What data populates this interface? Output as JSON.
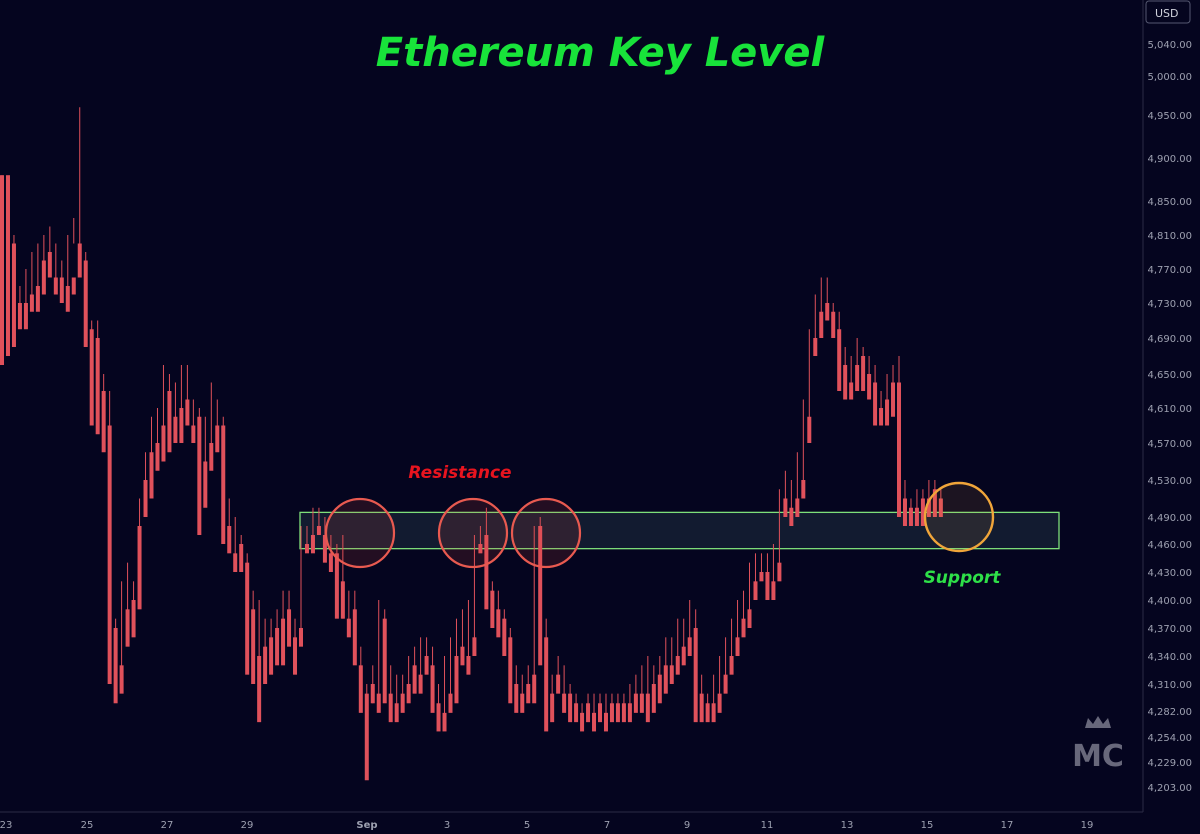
{
  "chart_data": {
    "type": "candlestick",
    "title": "Ethereum Key Level",
    "currency": "USD",
    "colors": {
      "background": "#05051f",
      "up": "#6fa86a",
      "down": "#e0515b",
      "title": "#18e33a",
      "resistance_text": "#e8141f",
      "support_text": "#2ee048",
      "zone_border": "#7ee07a",
      "resistance_circle": "#e85a50",
      "support_circle": "#f0a53a",
      "axis_text": "#9da0b0"
    },
    "y_axis": {
      "ticks": [
        4203,
        4229,
        4254,
        4282,
        4310,
        4340,
        4370,
        4400,
        4430,
        4460,
        4490,
        4530,
        4570,
        4610,
        4650,
        4690,
        4730,
        4770,
        4810,
        4850,
        4900,
        4950,
        5000,
        5040
      ],
      "tick_labels": [
        "4,203.00",
        "4,229.00",
        "4,254.00",
        "4,282.00",
        "4,310.00",
        "4,340.00",
        "4,370.00",
        "4,400.00",
        "4,430.00",
        "4,460.00",
        "4,490.00",
        "4,530.00",
        "4,570.00",
        "4,610.00",
        "4,650.00",
        "4,690.00",
        "4,730.00",
        "4,770.00",
        "4,810.00",
        "4,850.00",
        "4,900.00",
        "4,950.00",
        "5,000.00",
        "5,040.00"
      ]
    },
    "x_axis": {
      "tick_labels": [
        "23",
        "25",
        "27",
        "29",
        "Sep",
        "3",
        "5",
        "7",
        "9",
        "11",
        "13",
        "15",
        "17",
        "19"
      ]
    },
    "key_zone": {
      "low": 4455,
      "high": 4495
    },
    "annotations": {
      "resistance_label": "Resistance",
      "support_label": "Support"
    },
    "candles": [
      [
        4880,
        4880,
        4700,
        4660
      ],
      [
        4880,
        4800,
        4760,
        4670
      ],
      [
        4800,
        4810,
        4710,
        4680
      ],
      [
        4730,
        4750,
        4710,
        4700
      ],
      [
        4730,
        4770,
        4720,
        4700
      ],
      [
        4740,
        4790,
        4730,
        4720
      ],
      [
        4750,
        4800,
        4740,
        4720
      ],
      [
        4780,
        4810,
        4760,
        4740
      ],
      [
        4790,
        4820,
        4760,
        4760
      ],
      [
        4760,
        4800,
        4750,
        4740
      ],
      [
        4760,
        4780,
        4740,
        4730
      ],
      [
        4750,
        4810,
        4740,
        4720
      ],
      [
        4760,
        4830,
        4800,
        4740
      ],
      [
        4800,
        4960,
        4770,
        4760
      ],
      [
        4780,
        4790,
        4700,
        4680
      ],
      [
        4700,
        4710,
        4600,
        4590
      ],
      [
        4690,
        4710,
        4600,
        4580
      ],
      [
        4630,
        4650,
        4580,
        4560
      ],
      [
        4590,
        4630,
        4330,
        4310
      ],
      [
        4370,
        4380,
        4320,
        4290
      ],
      [
        4330,
        4420,
        4320,
        4300
      ],
      [
        4390,
        4440,
        4370,
        4350
      ],
      [
        4400,
        4420,
        4380,
        4360
      ],
      [
        4480,
        4510,
        4400,
        4390
      ],
      [
        4530,
        4560,
        4500,
        4490
      ],
      [
        4560,
        4600,
        4530,
        4510
      ],
      [
        4570,
        4610,
        4550,
        4540
      ],
      [
        4590,
        4660,
        4560,
        4550
      ],
      [
        4630,
        4650,
        4570,
        4560
      ],
      [
        4600,
        4640,
        4580,
        4570
      ],
      [
        4610,
        4660,
        4580,
        4570
      ],
      [
        4620,
        4660,
        4600,
        4590
      ],
      [
        4590,
        4620,
        4580,
        4570
      ],
      [
        4600,
        4610,
        4480,
        4470
      ],
      [
        4550,
        4600,
        4520,
        4500
      ],
      [
        4570,
        4640,
        4560,
        4540
      ],
      [
        4590,
        4620,
        4580,
        4560
      ],
      [
        4590,
        4600,
        4470,
        4460
      ],
      [
        4480,
        4510,
        4460,
        4450
      ],
      [
        4450,
        4490,
        4440,
        4430
      ],
      [
        4460,
        4470,
        4440,
        4430
      ],
      [
        4440,
        4450,
        4340,
        4320
      ],
      [
        4390,
        4410,
        4340,
        4310
      ],
      [
        4340,
        4400,
        4320,
        4270
      ],
      [
        4350,
        4380,
        4330,
        4310
      ],
      [
        4360,
        4380,
        4340,
        4320
      ],
      [
        4370,
        4390,
        4350,
        4330
      ],
      [
        4380,
        4410,
        4360,
        4330
      ],
      [
        4390,
        4410,
        4360,
        4350
      ],
      [
        4360,
        4380,
        4350,
        4320
      ],
      [
        4370,
        4480,
        4360,
        4350
      ],
      [
        4460,
        4480,
        4460,
        4450
      ],
      [
        4470,
        4500,
        4460,
        4450
      ],
      [
        4480,
        4500,
        4470,
        4470
      ],
      [
        4470,
        4490,
        4450,
        4440
      ],
      [
        4450,
        4470,
        4440,
        4430
      ],
      [
        4450,
        4460,
        4390,
        4380
      ],
      [
        4420,
        4470,
        4380,
        4380
      ],
      [
        4380,
        4410,
        4370,
        4360
      ],
      [
        4390,
        4410,
        4340,
        4330
      ],
      [
        4330,
        4350,
        4290,
        4280
      ],
      [
        4300,
        4310,
        4270,
        4210
      ],
      [
        4310,
        4330,
        4290,
        4290
      ],
      [
        4300,
        4400,
        4290,
        4280
      ],
      [
        4380,
        4390,
        4310,
        4290
      ],
      [
        4300,
        4330,
        4290,
        4270
      ],
      [
        4290,
        4320,
        4280,
        4270
      ],
      [
        4300,
        4320,
        4290,
        4280
      ],
      [
        4310,
        4340,
        4300,
        4290
      ],
      [
        4330,
        4350,
        4310,
        4300
      ],
      [
        4320,
        4360,
        4310,
        4300
      ],
      [
        4340,
        4360,
        4330,
        4320
      ],
      [
        4330,
        4350,
        4290,
        4280
      ],
      [
        4290,
        4310,
        4270,
        4260
      ],
      [
        4280,
        4340,
        4270,
        4260
      ],
      [
        4300,
        4360,
        4290,
        4280
      ],
      [
        4340,
        4380,
        4300,
        4290
      ],
      [
        4350,
        4390,
        4340,
        4330
      ],
      [
        4340,
        4400,
        4330,
        4320
      ],
      [
        4360,
        4470,
        4350,
        4340
      ],
      [
        4460,
        4480,
        4460,
        4450
      ],
      [
        4470,
        4500,
        4400,
        4390
      ],
      [
        4410,
        4420,
        4380,
        4370
      ],
      [
        4390,
        4410,
        4370,
        4360
      ],
      [
        4380,
        4390,
        4350,
        4340
      ],
      [
        4360,
        4370,
        4300,
        4290
      ],
      [
        4310,
        4330,
        4290,
        4280
      ],
      [
        4300,
        4320,
        4290,
        4280
      ],
      [
        4310,
        4330,
        4300,
        4290
      ],
      [
        4320,
        4480,
        4300,
        4290
      ],
      [
        4480,
        4490,
        4340,
        4330
      ],
      [
        4360,
        4380,
        4300,
        4260
      ],
      [
        4300,
        4320,
        4290,
        4270
      ],
      [
        4320,
        4340,
        4310,
        4300
      ],
      [
        4300,
        4330,
        4290,
        4280
      ],
      [
        4300,
        4310,
        4280,
        4270
      ],
      [
        4290,
        4300,
        4280,
        4270
      ],
      [
        4280,
        4290,
        4270,
        4260
      ],
      [
        4290,
        4300,
        4280,
        4270
      ],
      [
        4280,
        4300,
        4270,
        4260
      ],
      [
        4290,
        4300,
        4280,
        4270
      ],
      [
        4280,
        4300,
        4270,
        4260
      ],
      [
        4290,
        4300,
        4280,
        4270
      ],
      [
        4290,
        4300,
        4280,
        4270
      ],
      [
        4290,
        4300,
        4280,
        4270
      ],
      [
        4290,
        4310,
        4280,
        4270
      ],
      [
        4300,
        4320,
        4290,
        4280
      ],
      [
        4300,
        4330,
        4290,
        4280
      ],
      [
        4300,
        4340,
        4280,
        4270
      ],
      [
        4310,
        4330,
        4290,
        4280
      ],
      [
        4320,
        4340,
        4300,
        4290
      ],
      [
        4330,
        4360,
        4310,
        4300
      ],
      [
        4330,
        4360,
        4320,
        4310
      ],
      [
        4340,
        4380,
        4330,
        4320
      ],
      [
        4350,
        4380,
        4340,
        4330
      ],
      [
        4360,
        4400,
        4350,
        4340
      ],
      [
        4370,
        4390,
        4280,
        4270
      ],
      [
        4300,
        4320,
        4280,
        4270
      ],
      [
        4290,
        4300,
        4280,
        4270
      ],
      [
        4290,
        4320,
        4280,
        4270
      ],
      [
        4300,
        4340,
        4290,
        4280
      ],
      [
        4320,
        4360,
        4310,
        4300
      ],
      [
        4340,
        4380,
        4330,
        4320
      ],
      [
        4360,
        4400,
        4350,
        4340
      ],
      [
        4380,
        4410,
        4370,
        4360
      ],
      [
        4390,
        4440,
        4380,
        4370
      ],
      [
        4420,
        4450,
        4410,
        4400
      ],
      [
        4430,
        4450,
        4430,
        4420
      ],
      [
        4430,
        4450,
        4410,
        4400
      ],
      [
        4420,
        4460,
        4410,
        4400
      ],
      [
        4440,
        4520,
        4430,
        4420
      ],
      [
        4510,
        4540,
        4500,
        4490
      ],
      [
        4500,
        4530,
        4490,
        4480
      ],
      [
        4510,
        4560,
        4500,
        4490
      ],
      [
        4530,
        4620,
        4520,
        4510
      ],
      [
        4600,
        4700,
        4580,
        4570
      ],
      [
        4690,
        4740,
        4680,
        4670
      ],
      [
        4720,
        4760,
        4700,
        4690
      ],
      [
        4730,
        4760,
        4720,
        4710
      ],
      [
        4720,
        4730,
        4700,
        4690
      ],
      [
        4700,
        4720,
        4640,
        4630
      ],
      [
        4660,
        4680,
        4630,
        4620
      ],
      [
        4640,
        4670,
        4630,
        4620
      ],
      [
        4660,
        4690,
        4640,
        4630
      ],
      [
        4670,
        4680,
        4640,
        4630
      ],
      [
        4650,
        4670,
        4630,
        4620
      ],
      [
        4640,
        4660,
        4600,
        4590
      ],
      [
        4610,
        4630,
        4600,
        4590
      ],
      [
        4620,
        4650,
        4600,
        4590
      ],
      [
        4640,
        4660,
        4620,
        4600
      ],
      [
        4640,
        4670,
        4500,
        4490
      ],
      [
        4510,
        4530,
        4490,
        4480
      ],
      [
        4500,
        4510,
        4490,
        4480
      ],
      [
        4500,
        4520,
        4490,
        4480
      ],
      [
        4510,
        4520,
        4500,
        4480
      ],
      [
        4510,
        4530,
        4500,
        4490
      ],
      [
        4520,
        4530,
        4500,
        4490
      ],
      [
        4510,
        4520,
        4500,
        4490
      ]
    ]
  }
}
